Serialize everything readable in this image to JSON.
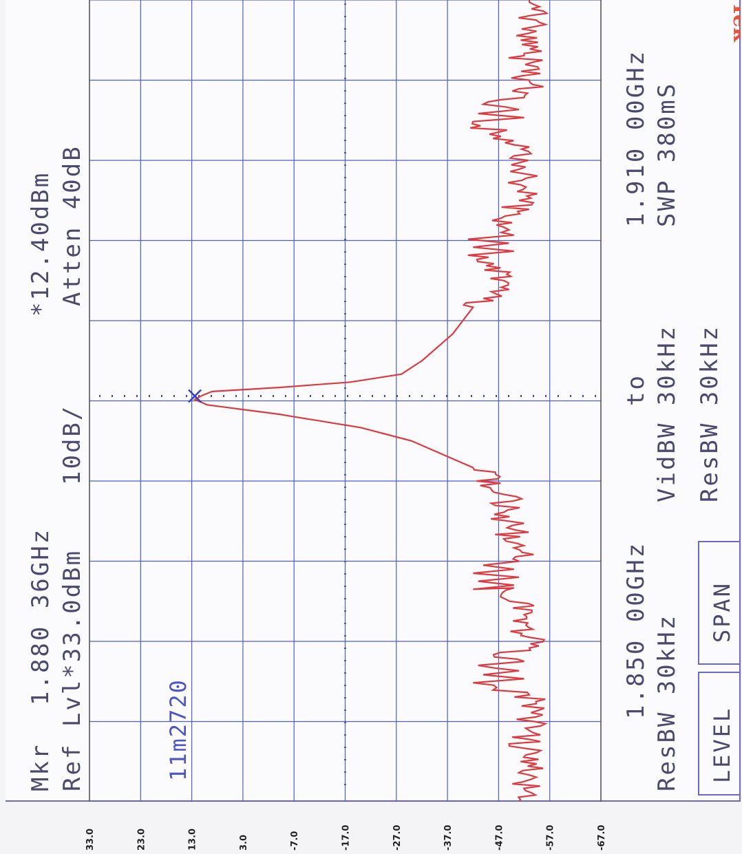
{
  "header": {
    "marker_label": "Mkr",
    "marker_freq": "1.880 36GHz",
    "marker_level": "*12.40dBm",
    "ref_level": "Ref Lvl*33.0dBm",
    "scale": "10dB/",
    "atten": "Atten 40dB",
    "brand": "Tek"
  },
  "marker_readout": "11m2720",
  "footer": {
    "start": "1.850 00GHz",
    "to": "to",
    "stop": "1.910 00GHz",
    "resbw_left": "ResBW 30kHz",
    "vidbw": "VidBW 30kHz",
    "sweep": "SWP 380mS",
    "resbw_right": "ResBW 30kHz"
  },
  "buttons": {
    "level": "LEVEL",
    "span": "SPAN"
  },
  "colors": {
    "grid": "#4d5ec8",
    "trace": "#dd3a3f",
    "marker": "#2f3ed0",
    "text": "#4a4a70",
    "brand": "#e6553b"
  },
  "chart_data": {
    "type": "line",
    "orientation": "rotated-90-cw",
    "xlabel": "",
    "ylabel": "",
    "x_range_ghz": [
      1.85,
      1.91
    ],
    "ylim": [
      -67.0,
      33.0
    ],
    "y_ticks": [
      "33.0",
      "23.0",
      "13.0",
      "3.0",
      "-7.0",
      "-17.0",
      "-27.0",
      "-37.0",
      "-47.0",
      "-57.0",
      "-67.0"
    ],
    "grid": true,
    "marker": {
      "x": 1.88036,
      "y": 12.4
    },
    "reference_line_y": -17.0,
    "series": [
      {
        "x": [
          1.85,
          1.852,
          1.854,
          1.856,
          1.858,
          1.8589,
          1.8592,
          1.8595,
          1.8598,
          1.8602,
          1.8605,
          1.861,
          1.8615,
          1.864,
          1.866,
          1.8659,
          1.8662,
          1.8665,
          1.8668,
          1.8671,
          1.8674,
          1.8677,
          1.868,
          1.869,
          1.871,
          1.873,
          1.875,
          1.877,
          1.878,
          1.879,
          1.8797,
          1.8801,
          1.8804,
          1.8807,
          1.881,
          1.8814,
          1.882,
          1.883,
          1.885,
          1.887,
          1.889,
          1.8909,
          1.8912,
          1.8915,
          1.8918,
          1.8921,
          1.8924,
          1.893,
          1.895,
          1.897,
          1.899,
          1.9009,
          1.9012,
          1.9015,
          1.9018,
          1.9022,
          1.9027,
          1.904,
          1.906,
          1.908,
          1.91
        ],
        "y": [
          -51,
          -53,
          -52,
          -54,
          -53,
          -42,
          -52,
          -44,
          -51,
          -43,
          -52,
          -46,
          -53,
          -52,
          -50,
          -42,
          -50,
          -43,
          -51,
          -42,
          -50,
          -44,
          -51,
          -50,
          -49,
          -48,
          -42,
          -30,
          -20,
          -4,
          10,
          12.4,
          11,
          9,
          -4,
          -18,
          -28,
          -32,
          -38,
          -42,
          -48,
          -41,
          -50,
          -42,
          -49,
          -41,
          -50,
          -48,
          -51,
          -52,
          -53,
          -42,
          -52,
          -43,
          -51,
          -44,
          -52,
          -53,
          -52,
          -54,
          -53
        ]
      }
    ]
  }
}
